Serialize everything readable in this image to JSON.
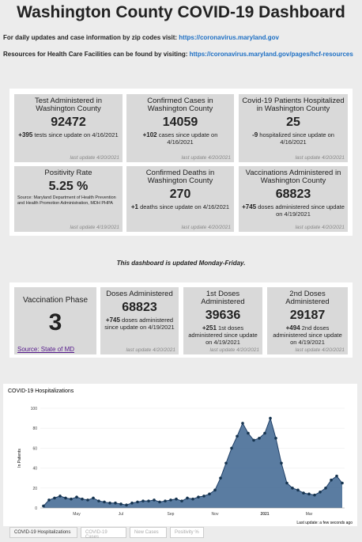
{
  "header": {
    "title": "Washington County COVID-19 Dashboard",
    "lines": [
      {
        "text": "For daily updates and case information by zip codes visit:",
        "link": "https://coronavirus.maryland.gov"
      },
      {
        "text": "Resources for Health Care Facilities can be found by visiting:",
        "link": "https://coronavirus.maryland.gov/pages/hcf-resources"
      }
    ]
  },
  "summary_cards": [
    {
      "title": "Test Administered in Washington County",
      "value": 92472,
      "delta": "+395",
      "note": "tests since update on 4/16/2021",
      "updated": "last update 4/20/2021"
    },
    {
      "title": "Confirmed Cases in Washington County",
      "value": 14059,
      "delta": "+102",
      "note": "cases since update on 4/16/2021",
      "updated": "last update 4/20/2021"
    },
    {
      "title": "Covid-19 Patients Hospitalized in Washington County",
      "value": 25,
      "delta": "-9",
      "note": "hospitalized since update on 4/16/2021",
      "updated": "last update 4/20/2021"
    },
    {
      "title": "Positivity Rate",
      "value": "5.25 %",
      "note": "Source: Maryland Department of Health Prevention and Health Promotion Administration, MDH PHPA",
      "updated": "last update 4/19/2021"
    },
    {
      "title": "Confirmed Deaths in Washington County",
      "value": 270,
      "delta": "+1",
      "note": "deaths since update on 4/16/2021",
      "updated": "last update 4/20/2021"
    },
    {
      "title": "Vaccinations Administered in Washington County",
      "value": 68823,
      "delta": "+745",
      "note": "doses administered since update on 4/19/2021",
      "updated": "last update 4/20/2021"
    }
  ],
  "notice": "This dashboard is updated Monday-Friday.",
  "vaccine_phase": {
    "title": "Vaccination Phase",
    "value": 3,
    "link": "Source: State of MD"
  },
  "vaccine_cards": [
    {
      "title": "Doses Administered",
      "value": 68823,
      "delta": "+745",
      "note": "doses administered since update on 4/19/2021",
      "updated": "last update 4/20/2021"
    },
    {
      "title": "1st Doses Administered",
      "value": 39636,
      "delta": "+251",
      "note": "1st doses administered since update on 4/19/2021",
      "updated": "last update 4/20/2021"
    },
    {
      "title": "2nd Doses Administered",
      "value": 29187,
      "delta": "+494",
      "note": "2nd doses administered since update on 4/19/2021",
      "updated": "last update 4/20/2021"
    }
  ],
  "chart_data": {
    "type": "area",
    "title": "COVID-19 Hospitalizations",
    "ylabel": "In Patients",
    "footer": "Last update: a few seconds ago",
    "color": "#3d6591",
    "grid": true,
    "categories": [
      null,
      null,
      null,
      null,
      null,
      null,
      "May",
      null,
      null,
      null,
      null,
      null,
      null,
      null,
      "Jul",
      null,
      null,
      null,
      null,
      null,
      null,
      null,
      null,
      "Sep",
      null,
      null,
      null,
      null,
      null,
      null,
      null,
      "Nov",
      null,
      null,
      null,
      null,
      null,
      null,
      null,
      null,
      "2021",
      null,
      null,
      null,
      null,
      null,
      null,
      null,
      "Mar",
      null,
      null,
      null,
      null,
      null,
      null
    ],
    "values": [
      2,
      8,
      10,
      12,
      10,
      9,
      11,
      9,
      8,
      10,
      7,
      6,
      5,
      5,
      4,
      3,
      5,
      6,
      7,
      7,
      8,
      6,
      7,
      8,
      9,
      7,
      10,
      9,
      11,
      12,
      14,
      18,
      30,
      45,
      60,
      72,
      85,
      75,
      68,
      70,
      75,
      90,
      70,
      45,
      25,
      20,
      18,
      15,
      14,
      13,
      16,
      20,
      28,
      32,
      25
    ],
    "ylim": [
      0,
      100
    ],
    "yticks": [
      0,
      20,
      40,
      60,
      80,
      100
    ]
  },
  "tabs": [
    "COVID-19 Hospitalizations",
    "COVID-19 Cases",
    "New Cases",
    "Positivity %"
  ]
}
